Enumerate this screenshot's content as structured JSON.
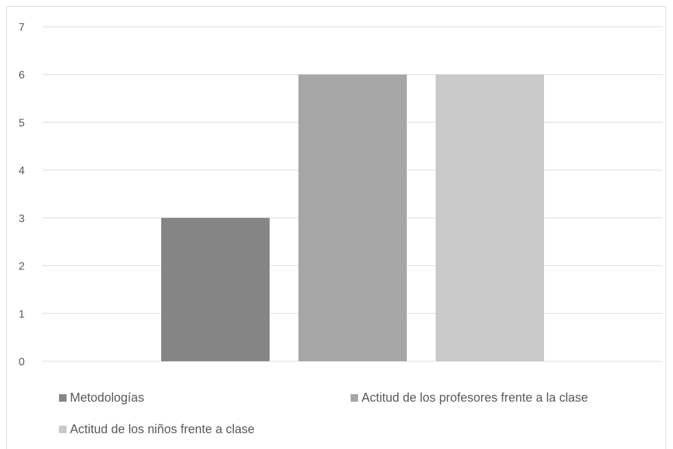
{
  "chart_data": {
    "type": "bar",
    "categories": [
      ""
    ],
    "series": [
      {
        "name": "Metodologías",
        "values": [
          3
        ],
        "color": "#858585"
      },
      {
        "name": "Actitud de los profesores frente a la clase",
        "values": [
          6
        ],
        "color": "#a6a6a6"
      },
      {
        "name": "Actitud de los niños frente a clase",
        "values": [
          6
        ],
        "color": "#c9c9c9"
      }
    ],
    "yticks": [
      "0",
      "1",
      "2",
      "3",
      "4",
      "5",
      "6",
      "7"
    ],
    "ylim": [
      0,
      7
    ],
    "grid": true,
    "legend_position": "bottom",
    "gridline_color": "#d9d9d9"
  }
}
